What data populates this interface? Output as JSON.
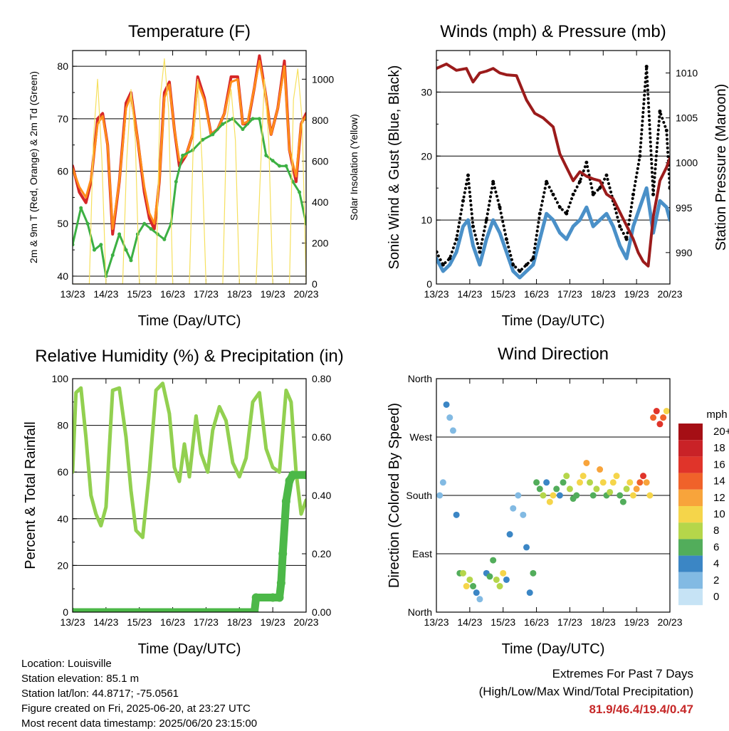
{
  "chart_data": [
    {
      "type": "line",
      "title": "Temperature (F)",
      "xlabel": "Time (Day/UTC)",
      "ylabel": "2m & 9m T (Red, Orange) & 2m Td (Green)",
      "y2label": "Solar Insolation (Yellow)",
      "x_ticks": [
        "13/23",
        "14/23",
        "15/23",
        "16/23",
        "17/23",
        "18/23",
        "19/23",
        "20/23"
      ],
      "xlim": [
        0,
        7
      ],
      "ylim": [
        38.5,
        83
      ],
      "y_ticks": [
        40,
        50,
        60,
        70,
        80
      ],
      "y2lim": [
        0,
        1140
      ],
      "y2_ticks": [
        0,
        200,
        400,
        600,
        800,
        1000
      ],
      "grid": true,
      "series": [
        {
          "name": "2m T",
          "color": "#d62728",
          "axis": "left",
          "x": [
            0,
            0.2,
            0.4,
            0.55,
            0.75,
            0.9,
            1.05,
            1.2,
            1.4,
            1.6,
            1.75,
            1.95,
            2.15,
            2.3,
            2.45,
            2.6,
            2.75,
            2.9,
            3.05,
            3.2,
            3.4,
            3.6,
            3.75,
            3.95,
            4.15,
            4.35,
            4.55,
            4.75,
            4.95,
            5.1,
            5.25,
            5.45,
            5.6,
            5.8,
            5.95,
            6.15,
            6.35,
            6.5,
            6.7,
            6.85,
            7
          ],
          "y": [
            61,
            56,
            54,
            58,
            70,
            71,
            65,
            48,
            58,
            73,
            75,
            66,
            56,
            51,
            49,
            58,
            75,
            77,
            68,
            61,
            63,
            67,
            78,
            74,
            67,
            68,
            71,
            78,
            78,
            69,
            69,
            76,
            82,
            74,
            67,
            72,
            81,
            64,
            58,
            69,
            71
          ]
        },
        {
          "name": "9m T",
          "color": "#ff8c1a",
          "axis": "left",
          "x": [
            0,
            0.2,
            0.4,
            0.55,
            0.75,
            0.9,
            1.05,
            1.2,
            1.4,
            1.6,
            1.75,
            1.95,
            2.15,
            2.3,
            2.45,
            2.6,
            2.75,
            2.9,
            3.05,
            3.2,
            3.4,
            3.6,
            3.75,
            3.95,
            4.15,
            4.35,
            4.55,
            4.75,
            4.95,
            5.1,
            5.25,
            5.45,
            5.6,
            5.8,
            5.95,
            6.15,
            6.35,
            6.5,
            6.7,
            6.85,
            7
          ],
          "y": [
            60.5,
            57,
            55,
            58.5,
            69,
            70.5,
            65,
            49,
            58,
            72,
            74.5,
            66,
            57,
            52,
            50,
            58,
            74,
            76.5,
            68,
            62,
            63,
            67,
            77,
            73.5,
            67,
            68,
            71,
            77,
            77.5,
            69,
            69.5,
            76,
            81,
            74,
            67,
            72,
            80,
            64,
            59,
            69,
            70.5
          ]
        },
        {
          "name": "2m Td",
          "color": "#3cb043",
          "axis": "left",
          "x": [
            0,
            0.25,
            0.45,
            0.65,
            0.85,
            1.0,
            1.2,
            1.4,
            1.6,
            1.75,
            1.95,
            2.15,
            2.35,
            2.55,
            2.75,
            2.95,
            3.1,
            3.3,
            3.6,
            3.9,
            4.2,
            4.5,
            4.8,
            5.1,
            5.4,
            5.6,
            5.8,
            6.0,
            6.2,
            6.4,
            6.6,
            6.8,
            7
          ],
          "y": [
            46,
            53,
            50,
            45,
            46,
            40,
            44,
            48,
            45,
            43,
            48,
            50,
            49,
            48,
            47,
            50,
            58,
            63,
            64,
            66,
            67,
            69,
            70,
            68,
            70,
            70,
            63,
            62,
            61,
            61,
            58,
            56,
            50
          ]
        },
        {
          "name": "Solar",
          "color": "#f6e05e",
          "axis": "right",
          "x": [
            0,
            0.5,
            0.62,
            0.75,
            0.88,
            1.0,
            1.5,
            1.62,
            1.75,
            1.88,
            2.0,
            2.5,
            2.62,
            2.75,
            2.88,
            3.0,
            3.5,
            3.62,
            3.75,
            3.88,
            4.0,
            4.5,
            4.62,
            4.75,
            4.88,
            5.0,
            5.5,
            5.62,
            5.75,
            5.88,
            6.0,
            6.5,
            6.62,
            6.75,
            6.88,
            7.0
          ],
          "y": [
            0,
            0,
            700,
            1000,
            600,
            0,
            0,
            600,
            950,
            700,
            0,
            0,
            900,
            1100,
            850,
            0,
            0,
            700,
            1000,
            600,
            0,
            0,
            800,
            950,
            700,
            0,
            0,
            500,
            1000,
            700,
            0,
            0,
            900,
            1050,
            800,
            0
          ]
        }
      ]
    },
    {
      "type": "line",
      "title": "Winds (mph) & Pressure (mb)",
      "xlabel": "Time (Day/UTC)",
      "ylabel": "Sonic Wind & Gust (Blue, Black)",
      "y2label": "Station Pressure (Maroon)",
      "x_ticks": [
        "13/23",
        "14/23",
        "15/23",
        "16/23",
        "17/23",
        "18/23",
        "19/23",
        "20/23"
      ],
      "xlim": [
        0,
        7
      ],
      "ylim": [
        0,
        36.5
      ],
      "y_ticks": [
        0,
        10,
        20,
        30
      ],
      "y2lim": [
        986.5,
        1012.5
      ],
      "y2_ticks": [
        990,
        995,
        1000,
        1005,
        1010
      ],
      "grid": true,
      "series": [
        {
          "name": "Sonic Wind",
          "color": "#4a90c8",
          "axis": "left",
          "x": [
            0,
            0.2,
            0.4,
            0.6,
            0.8,
            0.95,
            1.1,
            1.3,
            1.5,
            1.7,
            1.9,
            2.1,
            2.3,
            2.5,
            2.7,
            2.9,
            3.1,
            3.3,
            3.5,
            3.7,
            3.9,
            4.1,
            4.3,
            4.5,
            4.7,
            4.9,
            5.1,
            5.3,
            5.5,
            5.7,
            5.9,
            6.1,
            6.3,
            6.5,
            6.7,
            6.9,
            7
          ],
          "y": [
            4,
            2,
            3,
            5,
            9,
            10,
            6,
            3,
            7,
            10,
            8,
            5,
            2,
            1,
            2,
            3,
            7,
            11,
            10,
            8,
            7,
            9,
            10,
            12,
            9,
            10,
            11,
            9,
            6,
            4,
            9,
            12,
            15,
            8,
            13,
            12,
            10
          ]
        },
        {
          "name": "Gust",
          "color": "#000000",
          "axis": "left",
          "x": [
            0,
            0.2,
            0.4,
            0.6,
            0.8,
            0.95,
            1.1,
            1.3,
            1.5,
            1.7,
            1.9,
            2.1,
            2.3,
            2.5,
            2.7,
            2.9,
            3.1,
            3.3,
            3.5,
            3.7,
            3.9,
            4.1,
            4.3,
            4.5,
            4.7,
            4.9,
            5.1,
            5.3,
            5.5,
            5.7,
            5.9,
            6.1,
            6.3,
            6.5,
            6.7,
            6.9,
            7
          ],
          "y": [
            5,
            3,
            4,
            7,
            13,
            17,
            9,
            5,
            10,
            16,
            12,
            7,
            3,
            2,
            3,
            4,
            11,
            16,
            14,
            12,
            11,
            14,
            16,
            19,
            14,
            15,
            17,
            13,
            9,
            7,
            14,
            20,
            34,
            14,
            27,
            24,
            15
          ]
        },
        {
          "name": "Pressure",
          "color": "#9b1b1b",
          "axis": "right",
          "x": [
            0,
            0.3,
            0.6,
            0.9,
            1.1,
            1.3,
            1.5,
            1.7,
            1.9,
            2.1,
            2.4,
            2.7,
            2.95,
            3.2,
            3.5,
            3.7,
            3.9,
            4.1,
            4.3,
            4.5,
            4.7,
            4.9,
            5.1,
            5.3,
            5.5,
            5.7,
            5.9,
            6.05,
            6.2,
            6.35,
            6.5,
            6.7,
            6.9,
            7
          ],
          "y": [
            1010.5,
            1011,
            1010.3,
            1010.5,
            1009,
            1010,
            1010.2,
            1010.5,
            1010,
            1009.8,
            1009.7,
            1007,
            1005.5,
            1005,
            1004,
            1001,
            999.5,
            998,
            999,
            998.5,
            998.2,
            998,
            996.5,
            996,
            994.5,
            993,
            991.5,
            990,
            989,
            988.5,
            994,
            998,
            999.5,
            1000.5
          ]
        }
      ]
    },
    {
      "type": "line",
      "title": "Relative Humidity (%) & Precipitation (in)",
      "xlabel": "Time (Day/UTC)",
      "ylabel": "Percent & Total Rainfall",
      "x_ticks": [
        "13/23",
        "14/23",
        "15/23",
        "16/23",
        "17/23",
        "18/23",
        "19/23",
        "20/23"
      ],
      "xlim": [
        0,
        7
      ],
      "ylim": [
        0,
        100
      ],
      "y_ticks": [
        0,
        20,
        40,
        60,
        80,
        100
      ],
      "y2lim": [
        0,
        0.8
      ],
      "y2_ticks": [
        "0.00",
        "0.20",
        "0.40",
        "0.60",
        "0.80"
      ],
      "grid": true,
      "series": [
        {
          "name": "Relative Humidity",
          "color": "#92d050",
          "axis": "left",
          "x": [
            0,
            0.1,
            0.25,
            0.4,
            0.55,
            0.7,
            0.85,
            1.0,
            1.2,
            1.4,
            1.6,
            1.75,
            1.9,
            2.1,
            2.3,
            2.5,
            2.7,
            2.9,
            3.05,
            3.2,
            3.35,
            3.5,
            3.7,
            3.85,
            4.05,
            4.2,
            4.4,
            4.6,
            4.8,
            5.0,
            5.2,
            5.4,
            5.6,
            5.8,
            6.0,
            6.2,
            6.4,
            6.55,
            6.7,
            6.85,
            7
          ],
          "y": [
            60,
            94,
            96,
            75,
            50,
            42,
            37,
            45,
            95,
            96,
            75,
            52,
            35,
            32,
            60,
            95,
            98,
            85,
            62,
            56,
            72,
            58,
            84,
            68,
            60,
            78,
            88,
            82,
            64,
            58,
            66,
            90,
            94,
            70,
            62,
            60,
            95,
            90,
            60,
            42,
            48
          ]
        },
        {
          "name": "Total Rainfall",
          "color": "#4cb848",
          "axis": "right",
          "x": [
            0,
            5.45,
            5.5,
            6.0,
            6.2,
            6.25,
            6.3,
            6.4,
            6.5,
            6.6,
            7
          ],
          "y": [
            0,
            0,
            0.05,
            0.05,
            0.05,
            0.1,
            0.2,
            0.38,
            0.45,
            0.47,
            0.47
          ]
        }
      ]
    },
    {
      "type": "scatter",
      "title": "Wind Direction",
      "xlabel": "Time (Day/UTC)",
      "ylabel": "Direction (Colored By Speed)",
      "x_ticks": [
        "13/23",
        "14/23",
        "15/23",
        "16/23",
        "17/23",
        "18/23",
        "19/23",
        "20/23"
      ],
      "xlim": [
        0,
        7
      ],
      "ylim": [
        0,
        360
      ],
      "y_ticks": [
        "North",
        "East",
        "South",
        "West",
        "North"
      ],
      "grid": true,
      "legend": {
        "title": "mph",
        "labels": [
          "20+",
          "18",
          "16",
          "14",
          "12",
          "10",
          "8",
          "6",
          "4",
          "2",
          "0"
        ],
        "colors": [
          "#a50f15",
          "#c92227",
          "#e0342a",
          "#f0622a",
          "#f8a43b",
          "#f5d54a",
          "#b5d64a",
          "#52ad5b",
          "#3b86c5",
          "#82bae3",
          "#c6e3f5"
        ]
      },
      "series": [
        {
          "name": "Direction",
          "x": [
            0.1,
            0.2,
            0.3,
            0.4,
            0.5,
            0.6,
            0.7,
            0.8,
            0.9,
            1.0,
            1.1,
            1.2,
            1.3,
            1.5,
            1.6,
            1.7,
            1.8,
            1.9,
            2.0,
            2.1,
            2.2,
            2.3,
            2.45,
            2.6,
            2.7,
            2.8,
            2.9,
            3.0,
            3.1,
            3.2,
            3.3,
            3.4,
            3.5,
            3.6,
            3.7,
            3.8,
            3.9,
            4.0,
            4.1,
            4.2,
            4.3,
            4.4,
            4.5,
            4.6,
            4.7,
            4.8,
            4.9,
            5.0,
            5.1,
            5.2,
            5.3,
            5.4,
            5.5,
            5.6,
            5.7,
            5.8,
            5.9,
            6.0,
            6.1,
            6.2,
            6.3,
            6.4,
            6.5,
            6.6,
            6.7,
            6.8,
            6.9
          ],
          "y": [
            180,
            200,
            320,
            300,
            280,
            150,
            60,
            60,
            40,
            50,
            40,
            30,
            20,
            60,
            55,
            80,
            50,
            40,
            60,
            50,
            120,
            160,
            180,
            150,
            100,
            30,
            60,
            200,
            190,
            180,
            200,
            170,
            180,
            190,
            180,
            200,
            210,
            190,
            175,
            180,
            200,
            210,
            230,
            200,
            180,
            190,
            220,
            200,
            180,
            185,
            200,
            210,
            180,
            170,
            190,
            200,
            180,
            190,
            200,
            210,
            200,
            180,
            300,
            310,
            290,
            300,
            310
          ],
          "speed": [
            1,
            2,
            3,
            2,
            1,
            3,
            6,
            8,
            9,
            7,
            5,
            3,
            1,
            4,
            5,
            6,
            7,
            8,
            9,
            4,
            3,
            2,
            1,
            2,
            3,
            4,
            5,
            5,
            6,
            7,
            4,
            9,
            10,
            6,
            4,
            5,
            8,
            7,
            5,
            6,
            9,
            10,
            11,
            7,
            5,
            8,
            11,
            9,
            6,
            7,
            10,
            9,
            5,
            6,
            8,
            9,
            10,
            12,
            13,
            15,
            11,
            9,
            14,
            15,
            16,
            13,
            10
          ]
        }
      ]
    }
  ],
  "footer": {
    "location": "Location: Louisville",
    "elevation": "Station elevation: 85.1 m",
    "latlon": "Station lat/lon: 44.8717; -75.0561",
    "created": "Figure created on Fri, 2025-06-20, at 23:27 UTC",
    "recent": "Most recent data timestamp: 2025/06/20 23:15:00"
  },
  "extremes": {
    "title": "Extremes For Past 7 Days",
    "subtitle": "(High/Low/Max Wind/Total Precipitation)",
    "values": "81.9/46.4/19.4/0.47"
  }
}
